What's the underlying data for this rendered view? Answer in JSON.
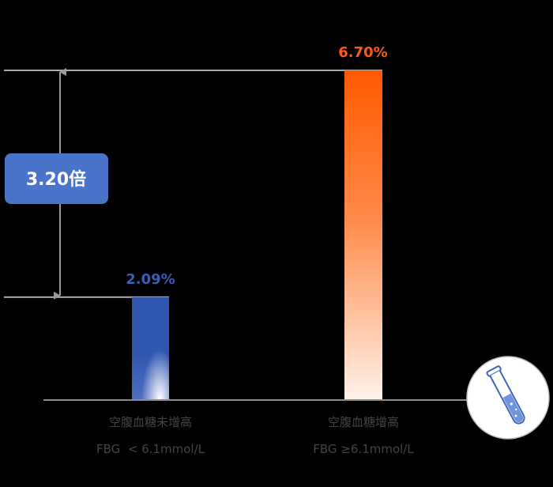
{
  "chart_data": {
    "type": "bar",
    "categories": [
      {
        "name": "空腹血糖未增高",
        "sub": "FBG  < 6.1mmol/L"
      },
      {
        "name": "空腹血糖增高",
        "sub": "FBG ≥6.1mmol/L"
      }
    ],
    "values": [
      2.09,
      6.7
    ],
    "value_labels": [
      "2.09%",
      "6.70%"
    ],
    "unit": "%",
    "ylim": [
      0,
      6.7
    ],
    "ratio_label": "3.20倍",
    "grid": false,
    "legend": "none",
    "colors": {
      "bar1_top": "#2f56b0",
      "bar1_bottom": "#ffffff",
      "bar2_top": "#ff5a00",
      "bar2_bottom": "#fff2ea",
      "label1": "#3a5db8",
      "label2": "#ff5a10",
      "ratio_box": "#4a74c9",
      "ref_line": "#aaaaaa",
      "axis": "#8c8c8c",
      "arrow": "#9a9a9a",
      "category_text": "#444444"
    },
    "icon": "test-tube-icon"
  }
}
